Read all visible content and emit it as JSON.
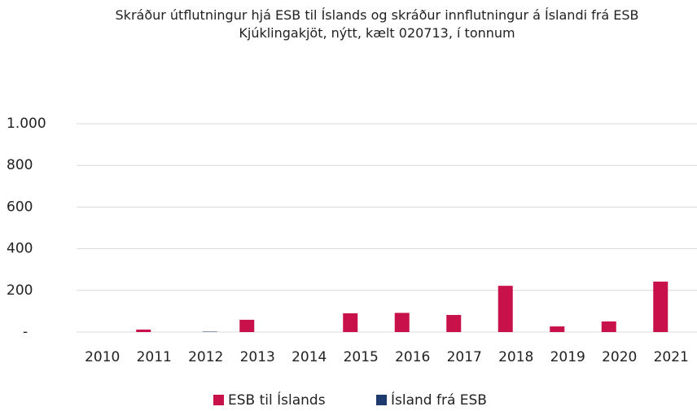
{
  "chart_data": {
    "type": "bar",
    "title": "Skráður útflutningur hjá ESB til Íslands og skráður innflutningur á Íslandi frá ESB",
    "subtitle": "Kjúklingakjöt, nýtt, kælt 020713, í tonnum",
    "categories": [
      "2010",
      "2011",
      "2012",
      "2013",
      "2014",
      "2015",
      "2016",
      "2017",
      "2018",
      "2019",
      "2020",
      "2021"
    ],
    "series": [
      {
        "name": "ESB til Íslands",
        "color": "#c8104a",
        "values": [
          0,
          12,
          0,
          59,
          0,
          90,
          92,
          82,
          222,
          27,
          51,
          242
        ]
      },
      {
        "name": "Ísland frá ESB",
        "color": "#1f3a6e",
        "values": [
          0,
          0,
          2,
          0,
          0,
          0,
          0,
          0,
          0,
          0,
          0,
          0
        ]
      }
    ],
    "ylim": [
      0,
      1000
    ],
    "yticks": [
      {
        "value": 0,
        "label": "-"
      },
      200,
      400,
      600,
      800,
      {
        "value": 1000,
        "label": "1.000"
      }
    ],
    "grid": true,
    "legend": "bottom"
  }
}
